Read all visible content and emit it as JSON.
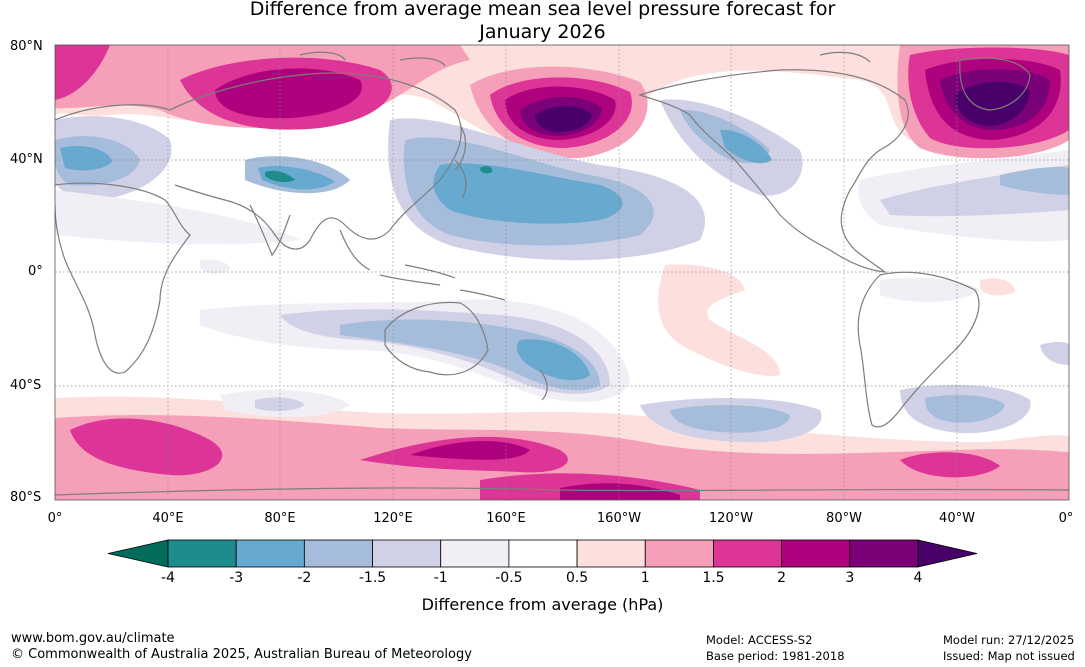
{
  "title": {
    "line1": "Difference from average mean sea level pressure forecast for",
    "line2": "January 2026"
  },
  "lat_labels": [
    "80°N",
    "40°N",
    "0°",
    "40°S",
    "80°S"
  ],
  "lon_labels": [
    "0°",
    "40°E",
    "80°E",
    "120°E",
    "160°E",
    "160°W",
    "120°W",
    "80°W",
    "40°W",
    "0°"
  ],
  "colorbar": {
    "title": "Difference from average (hPa)",
    "ticks": [
      "-4",
      "-3",
      "-2",
      "-1.5",
      "-1",
      "-0.5",
      "0.5",
      "1",
      "1.5",
      "2",
      "3",
      "4"
    ],
    "colors": [
      "#1e8c8c",
      "#67a9cf",
      "#a6bcdb",
      "#d0d1e6",
      "#f1eef6",
      "#ffffff",
      "#fde0dd",
      "#f5a0b8",
      "#dd3497",
      "#ae017e",
      "#7a0177",
      "#49006a"
    ],
    "under_color": "#016c59",
    "over_color": "#49006a"
  },
  "footer": {
    "site": "www.bom.gov.au/climate",
    "copyright": "© Commonwealth of Australia 2025, Australian Bureau of Meteorology",
    "model": "Model: ACCESS-S2",
    "base_period": "Base period: 1981-2018",
    "model_run": "Model run: 27/12/2025",
    "issued": "Issued: Map not issued"
  }
}
